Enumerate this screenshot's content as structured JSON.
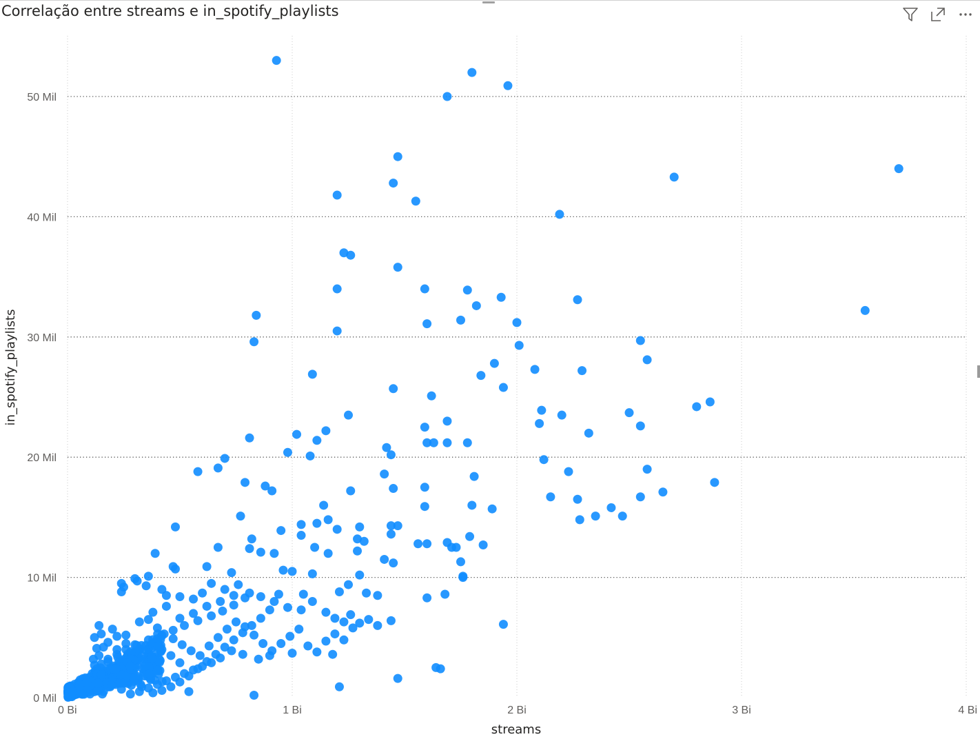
{
  "visual": {
    "title": "Correlação entre streams e in_spotify_playlists",
    "toolbar": [
      {
        "name": "filter-icon"
      },
      {
        "name": "focus-mode-icon"
      },
      {
        "name": "more-options-icon"
      }
    ]
  },
  "chart_data": {
    "type": "scatter",
    "title": "Correlação entre streams e in_spotify_playlists",
    "xlabel": "streams",
    "ylabel": "in_spotify_playlists",
    "xlim": [
      0,
      4000000000
    ],
    "ylim": [
      0,
      55000
    ],
    "x_ticks": [
      0,
      1000000000,
      2000000000,
      3000000000,
      4000000000
    ],
    "x_tick_labels": [
      "0 Bi",
      "1 Bi",
      "2 Bi",
      "3 Bi",
      "4 Bi"
    ],
    "y_ticks": [
      0,
      10000,
      20000,
      30000,
      40000,
      50000
    ],
    "y_tick_labels": [
      "0 Mil",
      "10 Mil",
      "20 Mil",
      "30 Mil",
      "40 Mil",
      "50 Mil"
    ],
    "grid": true,
    "point_color": "#118DFF",
    "points": [
      [
        930,
        53000
      ],
      [
        1800,
        52000
      ],
      [
        1960,
        50900
      ],
      [
        1690,
        50000
      ],
      [
        1470,
        45000
      ],
      [
        3700,
        44000
      ],
      [
        2700,
        43300
      ],
      [
        1450,
        42800
      ],
      [
        1200,
        41800
      ],
      [
        1550,
        41300
      ],
      [
        2190,
        40200
      ],
      [
        1230,
        37000
      ],
      [
        1260,
        36800
      ],
      [
        1470,
        35800
      ],
      [
        1590,
        34000
      ],
      [
        1200,
        34000
      ],
      [
        1780,
        33900
      ],
      [
        1930,
        33300
      ],
      [
        2270,
        33100
      ],
      [
        1820,
        32600
      ],
      [
        3550,
        32200
      ],
      [
        840,
        31800
      ],
      [
        1750,
        31400
      ],
      [
        2000,
        31200
      ],
      [
        1600,
        31100
      ],
      [
        1200,
        30500
      ],
      [
        830,
        29600
      ],
      [
        2550,
        29700
      ],
      [
        2010,
        29300
      ],
      [
        2580,
        28100
      ],
      [
        1900,
        27800
      ],
      [
        2080,
        27300
      ],
      [
        2290,
        27200
      ],
      [
        1090,
        26900
      ],
      [
        1840,
        26800
      ],
      [
        1940,
        25800
      ],
      [
        1450,
        25700
      ],
      [
        1620,
        25100
      ],
      [
        2860,
        24600
      ],
      [
        2800,
        24200
      ],
      [
        2110,
        23900
      ],
      [
        2500,
        23700
      ],
      [
        1250,
        23500
      ],
      [
        2200,
        23500
      ],
      [
        1690,
        23000
      ],
      [
        2100,
        22800
      ],
      [
        2550,
        22600
      ],
      [
        1590,
        22500
      ],
      [
        1150,
        22200
      ],
      [
        2320,
        22000
      ],
      [
        1020,
        21900
      ],
      [
        810,
        21600
      ],
      [
        1110,
        21400
      ],
      [
        1600,
        21200
      ],
      [
        1630,
        21200
      ],
      [
        1690,
        21200
      ],
      [
        1780,
        21200
      ],
      [
        1420,
        20800
      ],
      [
        980,
        20400
      ],
      [
        1440,
        20200
      ],
      [
        1080,
        20100
      ],
      [
        700,
        19900
      ],
      [
        2120,
        19800
      ],
      [
        670,
        19100
      ],
      [
        2580,
        19000
      ],
      [
        580,
        18800
      ],
      [
        2230,
        18800
      ],
      [
        1410,
        18600
      ],
      [
        1810,
        18400
      ],
      [
        790,
        17900
      ],
      [
        2880,
        17900
      ],
      [
        880,
        17600
      ],
      [
        1590,
        17500
      ],
      [
        1450,
        17400
      ],
      [
        910,
        17200
      ],
      [
        1260,
        17200
      ],
      [
        2650,
        17100
      ],
      [
        2150,
        16700
      ],
      [
        2550,
        16700
      ],
      [
        2270,
        16500
      ],
      [
        1590,
        15900
      ],
      [
        1800,
        16000
      ],
      [
        1140,
        16000
      ],
      [
        1890,
        15700
      ],
      [
        2420,
        15800
      ],
      [
        770,
        15100
      ],
      [
        2350,
        15100
      ],
      [
        2470,
        15100
      ],
      [
        2280,
        14800
      ],
      [
        1160,
        14800
      ],
      [
        1110,
        14500
      ],
      [
        1040,
        14400
      ],
      [
        1440,
        14300
      ],
      [
        1470,
        14300
      ],
      [
        480,
        14200
      ],
      [
        1300,
        14200
      ],
      [
        1200,
        14000
      ],
      [
        950,
        13900
      ],
      [
        1440,
        13600
      ],
      [
        1040,
        13500
      ],
      [
        1790,
        13400
      ],
      [
        820,
        13200
      ],
      [
        1290,
        13200
      ],
      [
        1320,
        13000
      ],
      [
        1560,
        12800
      ],
      [
        1600,
        12800
      ],
      [
        1850,
        12700
      ],
      [
        1690,
        12900
      ],
      [
        1710,
        12500
      ],
      [
        1730,
        12500
      ],
      [
        1100,
        12500
      ],
      [
        670,
        12500
      ],
      [
        810,
        12400
      ],
      [
        1290,
        12200
      ],
      [
        860,
        12100
      ],
      [
        1160,
        12000
      ],
      [
        920,
        12000
      ],
      [
        390,
        12000
      ],
      [
        1750,
        11300
      ],
      [
        1410,
        11500
      ],
      [
        1450,
        11200
      ],
      [
        730,
        10400
      ],
      [
        1000,
        10500
      ],
      [
        960,
        10600
      ],
      [
        1090,
        10300
      ],
      [
        1760,
        10100
      ],
      [
        1300,
        10200
      ],
      [
        470,
        10900
      ],
      [
        480,
        10700
      ],
      [
        620,
        10900
      ],
      [
        360,
        10100
      ],
      [
        300,
        9900
      ],
      [
        1760,
        10000
      ],
      [
        1600,
        8300
      ],
      [
        1680,
        8600
      ],
      [
        1940,
        6100
      ],
      [
        1640,
        2500
      ],
      [
        1660,
        2400
      ],
      [
        1470,
        1600
      ],
      [
        1210,
        900
      ],
      [
        830,
        200
      ],
      [
        540,
        500
      ],
      [
        240,
        9500
      ],
      [
        250,
        9200
      ],
      [
        240,
        8800
      ],
      [
        310,
        9700
      ],
      [
        350,
        9300
      ],
      [
        420,
        9000
      ],
      [
        440,
        8500
      ],
      [
        500,
        8400
      ],
      [
        560,
        8200
      ],
      [
        600,
        8700
      ],
      [
        640,
        9500
      ],
      [
        700,
        9000
      ],
      [
        760,
        9400
      ],
      [
        810,
        8700
      ],
      [
        860,
        8400
      ],
      [
        920,
        8000
      ],
      [
        980,
        7500
      ],
      [
        1040,
        7300
      ],
      [
        1090,
        8000
      ],
      [
        1150,
        7100
      ],
      [
        1190,
        6600
      ],
      [
        1230,
        6300
      ],
      [
        1260,
        6900
      ],
      [
        1300,
        6200
      ],
      [
        1340,
        6500
      ],
      [
        1380,
        6000
      ],
      [
        1440,
        6400
      ],
      [
        1250,
        9400
      ],
      [
        1210,
        8800
      ],
      [
        1330,
        8700
      ],
      [
        1380,
        8500
      ],
      [
        1050,
        8600
      ],
      [
        940,
        8600
      ],
      [
        790,
        8300
      ],
      [
        740,
        7700
      ],
      [
        690,
        7200
      ],
      [
        640,
        6800
      ],
      [
        580,
        6400
      ],
      [
        520,
        6000
      ],
      [
        470,
        5600
      ],
      [
        420,
        5200
      ],
      [
        360,
        4800
      ],
      [
        300,
        4400
      ],
      [
        260,
        4000
      ],
      [
        220,
        3600
      ],
      [
        180,
        3200
      ],
      [
        150,
        2800
      ],
      [
        130,
        2400
      ],
      [
        110,
        2000
      ],
      [
        100,
        1600
      ],
      [
        1180,
        3600
      ],
      [
        1000,
        3700
      ],
      [
        900,
        3500
      ],
      [
        850,
        3200
      ],
      [
        780,
        3600
      ],
      [
        730,
        3900
      ],
      [
        680,
        3300
      ],
      [
        640,
        2900
      ],
      [
        600,
        2600
      ],
      [
        560,
        2300
      ],
      [
        520,
        2000
      ],
      [
        480,
        1700
      ],
      [
        440,
        1400
      ],
      [
        400,
        1100
      ],
      [
        360,
        800
      ],
      [
        320,
        500
      ],
      [
        280,
        300
      ],
      [
        250,
        1200
      ],
      [
        220,
        1900
      ],
      [
        200,
        2500
      ],
      [
        180,
        3000
      ],
      [
        160,
        4200
      ],
      [
        140,
        3500
      ],
      [
        120,
        2700
      ],
      [
        110,
        1100
      ],
      [
        105,
        600
      ],
      [
        100,
        300
      ],
      [
        160,
        500
      ],
      [
        190,
        900
      ],
      [
        230,
        1500
      ],
      [
        270,
        2300
      ],
      [
        310,
        3100
      ],
      [
        350,
        3900
      ],
      [
        390,
        4600
      ],
      [
        430,
        5300
      ],
      [
        470,
        4900
      ],
      [
        510,
        4400
      ],
      [
        550,
        3900
      ],
      [
        590,
        3500
      ],
      [
        630,
        4300
      ],
      [
        670,
        5000
      ],
      [
        710,
        5700
      ],
      [
        750,
        6300
      ],
      [
        790,
        5900
      ],
      [
        830,
        5200
      ],
      [
        870,
        4500
      ],
      [
        910,
        3900
      ],
      [
        950,
        4500
      ],
      [
        990,
        5100
      ],
      [
        1030,
        5700
      ],
      [
        1070,
        4300
      ],
      [
        1110,
        3800
      ],
      [
        1150,
        4700
      ],
      [
        1190,
        5300
      ],
      [
        1230,
        4800
      ],
      [
        1270,
        5800
      ],
      [
        900,
        7300
      ],
      [
        860,
        6600
      ],
      [
        820,
        6000
      ],
      [
        780,
        5400
      ],
      [
        740,
        4800
      ],
      [
        700,
        4200
      ],
      [
        660,
        3600
      ],
      [
        620,
        3000
      ],
      [
        580,
        2400
      ],
      [
        540,
        1800
      ],
      [
        500,
        1300
      ],
      [
        460,
        900
      ],
      [
        420,
        600
      ],
      [
        380,
        400
      ],
      [
        340,
        2100
      ],
      [
        300,
        2700
      ],
      [
        260,
        3300
      ],
      [
        220,
        4000
      ],
      [
        180,
        4600
      ],
      [
        150,
        5300
      ],
      [
        140,
        6000
      ],
      [
        200,
        5700
      ],
      [
        260,
        5200
      ],
      [
        320,
        6300
      ],
      [
        380,
        7100
      ],
      [
        440,
        7600
      ],
      [
        500,
        6600
      ],
      [
        560,
        7000
      ],
      [
        620,
        7600
      ],
      [
        680,
        8000
      ],
      [
        740,
        8500
      ],
      [
        500,
        2900
      ],
      [
        460,
        3500
      ],
      [
        420,
        4000
      ],
      [
        380,
        2600
      ],
      [
        340,
        3200
      ],
      [
        300,
        3800
      ],
      [
        260,
        4500
      ],
      [
        220,
        5100
      ],
      [
        400,
        5800
      ],
      [
        360,
        6500
      ],
      [
        120,
        5000
      ],
      [
        130,
        4100
      ],
      [
        115,
        3200
      ],
      [
        125,
        2100
      ],
      [
        135,
        1300
      ],
      [
        145,
        700
      ],
      [
        155,
        300
      ],
      [
        170,
        1700
      ],
      [
        210,
        1300
      ],
      [
        240,
        700
      ],
      [
        290,
        1600
      ],
      [
        330,
        900
      ],
      [
        370,
        1500
      ]
    ]
  }
}
